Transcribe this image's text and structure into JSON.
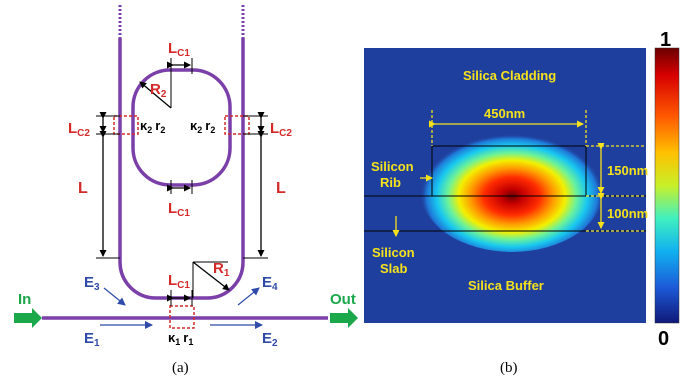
{
  "panel_a": {
    "caption": "(a)",
    "in_label": "In",
    "out_label": "Out",
    "lc1_top": "L",
    "lc1_top_sub": "C1",
    "lc1_mid": "L",
    "lc1_mid_sub": "C1",
    "lc1_bot": "L",
    "lc1_bot_sub": "C1",
    "lc2_left": "L",
    "lc2_left_sub": "C2",
    "lc2_right": "L",
    "lc2_right_sub": "C2",
    "l_left": "L",
    "l_right": "L",
    "r2": "R",
    "r2_sub": "2",
    "r1": "R",
    "r1_sub": "1",
    "k2_left": "κ",
    "k2_left_sub": "2",
    "r2_left": "r",
    "r2_left_sub": "2",
    "k2_right": "κ",
    "k2_right_sub": "2",
    "r2_right": "r",
    "r2_right_sub": "2",
    "k1": "κ",
    "k1_sub": "1",
    "r1_small": "r",
    "r1_small_sub": "1",
    "e1": "E",
    "e1_sub": "1",
    "e2": "E",
    "e2_sub": "2",
    "e3": "E",
    "e3_sub": "3",
    "e4": "E",
    "e4_sub": "4"
  },
  "panel_b": {
    "caption": "(b)",
    "silica_cladding": "Silica Cladding",
    "silica_buffer": "Silica Buffer",
    "silicon_rib_1": "Silicon",
    "silicon_rib_2": "Rib",
    "silicon_slab_1": "Silicon",
    "silicon_slab_2": "Slab",
    "dim_width": "450nm",
    "dim_rib_height": "150nm",
    "dim_slab_height": "100nm",
    "colorbar_max": "1",
    "colorbar_min": "0"
  },
  "colors": {
    "waveguide": "#7a3fa8",
    "red_label": "#d42a2a",
    "blue_label": "#2f4aa8",
    "arrow_green": "#1aa84a",
    "annotation_yellow": "#f5e21a",
    "field_background": "#1f3f9e"
  }
}
